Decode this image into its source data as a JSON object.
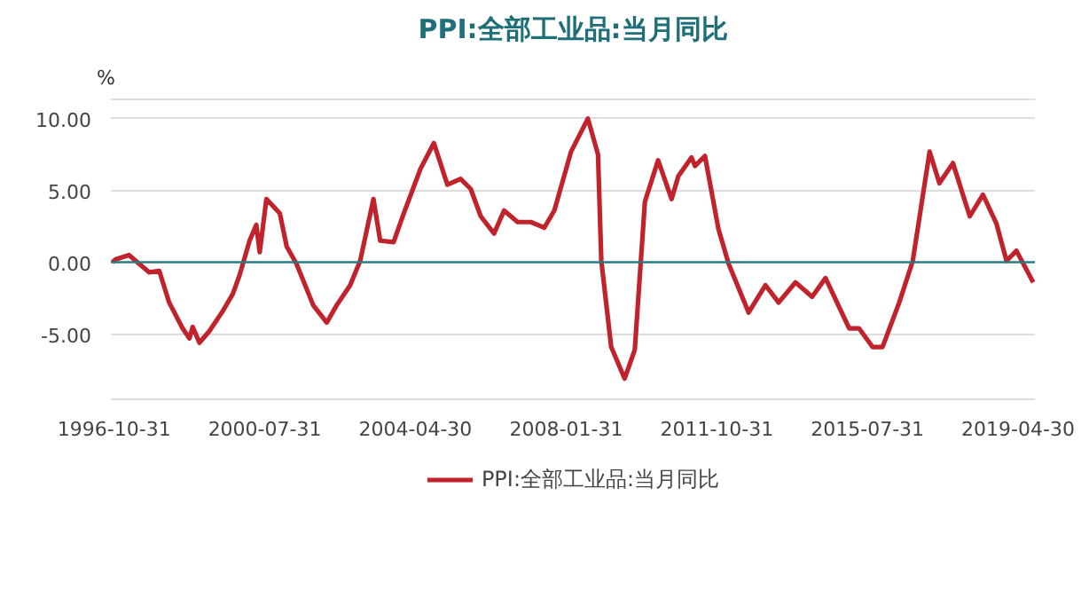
{
  "chart_data": {
    "type": "line",
    "title": "PPI:全部工业品:当月同比",
    "ylabel": "%",
    "x": [
      "1996-10",
      "1996-11",
      "1997-03",
      "1997-09",
      "1997-12",
      "1998-03",
      "1998-07",
      "1998-09",
      "1998-10",
      "1998-12",
      "1999-03",
      "1999-07",
      "1999-10",
      "1999-12",
      "2000-03",
      "2000-05",
      "2000-06",
      "2000-08",
      "2000-12",
      "2001-02",
      "2001-05",
      "2001-10",
      "2002-02",
      "2002-05",
      "2002-09",
      "2002-12",
      "2003-04",
      "2003-06",
      "2003-10",
      "2004-01",
      "2004-06",
      "2004-10",
      "2005-02",
      "2005-06",
      "2005-09",
      "2005-12",
      "2006-04",
      "2006-07",
      "2006-11",
      "2007-03",
      "2007-07",
      "2007-10",
      "2008-03",
      "2008-08",
      "2008-11",
      "2008-12",
      "2009-03",
      "2009-07",
      "2009-10",
      "2010-01",
      "2010-05",
      "2010-09",
      "2010-11",
      "2011-03",
      "2011-04",
      "2011-07",
      "2011-11",
      "2012-02",
      "2012-08",
      "2013-01",
      "2013-05",
      "2013-10",
      "2014-03",
      "2014-07",
      "2015-02",
      "2015-05",
      "2015-09",
      "2015-12",
      "2016-05",
      "2016-09",
      "2017-02",
      "2017-05",
      "2017-09",
      "2018-02",
      "2018-06",
      "2018-10",
      "2019-01",
      "2019-04",
      "2019-09"
    ],
    "series": [
      {
        "name": "PPI:全部工业品:当月同比",
        "color": "#c0232c",
        "values": [
          0.0,
          0.2,
          0.5,
          -0.7,
          -0.6,
          -2.8,
          -4.6,
          -5.3,
          -4.5,
          -5.6,
          -4.8,
          -3.4,
          -2.2,
          -0.9,
          1.5,
          2.6,
          0.7,
          4.4,
          3.4,
          1.1,
          -0.1,
          -3.0,
          -4.2,
          -3.0,
          -1.6,
          0.1,
          4.4,
          1.5,
          1.4,
          3.4,
          6.5,
          8.3,
          5.4,
          5.8,
          5.1,
          3.2,
          2.0,
          3.6,
          2.8,
          2.8,
          2.4,
          3.6,
          7.7,
          10.0,
          7.5,
          0.1,
          -5.9,
          -8.1,
          -6.1,
          4.2,
          7.1,
          4.4,
          6.0,
          7.3,
          6.7,
          7.4,
          2.3,
          -0.1,
          -3.5,
          -1.6,
          -2.8,
          -1.4,
          -2.4,
          -1.1,
          -4.6,
          -4.6,
          -5.9,
          -5.9,
          -2.8,
          0.1,
          7.7,
          5.5,
          6.9,
          3.2,
          4.7,
          2.7,
          0.1,
          0.8,
          -1.4
        ]
      }
    ],
    "xlim": [
      "1996-10-01",
      "2019-09-30"
    ],
    "xticks": [
      "1996-10-31",
      "2000-07-31",
      "2004-04-30",
      "2008-01-31",
      "2011-10-31",
      "2015-07-31",
      "2019-04-30"
    ],
    "ylim": [
      -9.6,
      11.4
    ],
    "yticks": [
      {
        "value": -5,
        "label": "-5.00"
      },
      {
        "value": 0,
        "label": "0.00"
      },
      {
        "value": 5,
        "label": "5.00"
      },
      {
        "value": 10,
        "label": "10.00"
      }
    ],
    "ref_lines": [
      {
        "axis": "y",
        "value": 0,
        "color": "#2a7a82",
        "line_style": "solid"
      }
    ],
    "grid": "y",
    "legend": "bottom",
    "line_style": "solid",
    "marker": "none"
  }
}
